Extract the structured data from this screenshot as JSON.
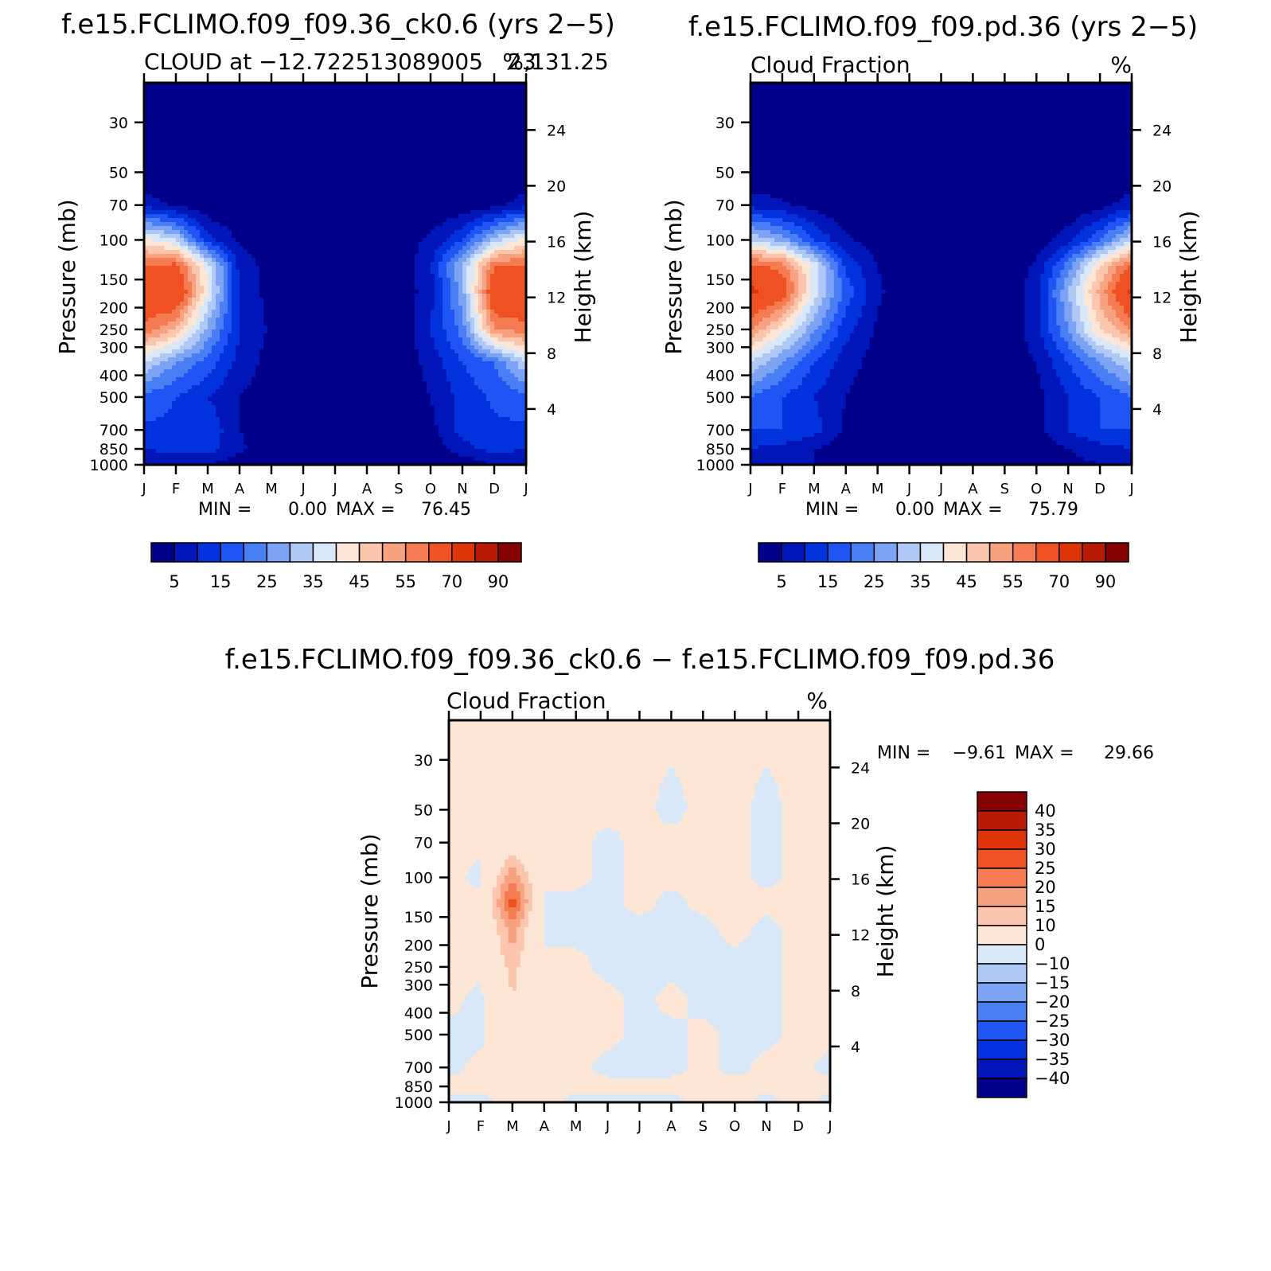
{
  "palettes": {
    "cloud": [
      "#00008b",
      "#0016b8",
      "#0033dd",
      "#1f55f5",
      "#4a7ef5",
      "#7ca3f4",
      "#afc8f6",
      "#d8e8f8",
      "#fde6d6",
      "#fcc5ad",
      "#f9a282",
      "#f47b52",
      "#f05123",
      "#de3508",
      "#b81a04",
      "#850000"
    ],
    "diff": [
      "#00008b",
      "#0016b8",
      "#0033dd",
      "#1f55f5",
      "#4a7ef5",
      "#7ca3f4",
      "#afc8f6",
      "#d8e8f8",
      "#fde6d6",
      "#fcc5ad",
      "#f9a282",
      "#f47b52",
      "#f05123",
      "#de3508",
      "#b81a04",
      "#850000"
    ]
  },
  "months": [
    "J",
    "F",
    "M",
    "A",
    "M",
    "J",
    "J",
    "A",
    "S",
    "O",
    "N",
    "D",
    "J"
  ],
  "pressure_ticks": [
    "30",
    "50",
    "70",
    "100",
    "150",
    "200",
    "250",
    "300",
    "400",
    "500",
    "700",
    "850",
    "1000"
  ],
  "height_ticks": [
    "24",
    "20",
    "16",
    "12",
    "8",
    "4"
  ],
  "panels": {
    "top_left": {
      "title": "f.e15.FCLIMO.f09_f09.36_ck0.6 (yrs 2−5)",
      "subtitle_left": "CLOUD at −12.722513089005",
      "subtitle_overlap": "23",
      "subtitle_rest": ",131.25",
      "units": "%",
      "ylabel": "Pressure (mb)",
      "ylabel_right": "Height (km)",
      "min_label": "MIN =",
      "min_value": "0.00",
      "max_label": "MAX =",
      "max_value": "76.45",
      "colorbar_labels": [
        "5",
        "15",
        "25",
        "35",
        "45",
        "55",
        "70",
        "90"
      ]
    },
    "top_right": {
      "title": "f.e15.FCLIMO.f09_f09.pd.36 (yrs 2−5)",
      "subtitle_left": "Cloud Fraction",
      "units": "%",
      "ylabel": "Pressure (mb)",
      "ylabel_right": "Height (km)",
      "min_label": "MIN =",
      "min_value": "0.00",
      "max_label": "MAX =",
      "max_value": "75.79",
      "colorbar_labels": [
        "5",
        "15",
        "25",
        "35",
        "45",
        "55",
        "70",
        "90"
      ]
    },
    "bottom": {
      "title": "f.e15.FCLIMO.f09_f09.36_ck0.6 − f.e15.FCLIMO.f09_f09.pd.36",
      "subtitle_left": "Cloud Fraction",
      "units": "%",
      "ylabel": "Pressure (mb)",
      "ylabel_right": "Height (km)",
      "min_label": "MIN =",
      "min_value": "−9.61",
      "max_label": "MAX =",
      "max_value": "29.66",
      "colorbar_labels": [
        "40",
        "35",
        "30",
        "25",
        "20",
        "15",
        "10",
        "0",
        "−10",
        "−15",
        "−20",
        "−25",
        "−30",
        "−35",
        "−40"
      ]
    }
  },
  "chart_data": [
    {
      "type": "heatmap",
      "title": "f.e15.FCLIMO.f09_f09.36_ck0.6 (yrs 2−5)",
      "subtitle": "CLOUD at −12.72251308900523,131.25",
      "units": "%",
      "xlabel": "",
      "ylabel": "Pressure (mb)",
      "ylabel_right": "Height (km)",
      "x": [
        "J",
        "F",
        "M",
        "A",
        "M",
        "J",
        "J",
        "A",
        "S",
        "O",
        "N",
        "D",
        "J"
      ],
      "y_pressure_ticks": [
        30,
        50,
        70,
        100,
        150,
        200,
        250,
        300,
        400,
        500,
        700,
        850,
        1000
      ],
      "y_height_ticks_km": [
        24,
        20,
        16,
        12,
        8,
        4
      ],
      "ylim": [
        1000,
        20
      ],
      "levels": [
        5,
        10,
        15,
        20,
        25,
        30,
        35,
        40,
        45,
        50,
        55,
        60,
        70,
        80,
        90
      ],
      "min": 0.0,
      "max": 76.45,
      "y_levels": [
        20,
        50,
        70,
        100,
        130,
        170,
        250,
        350,
        500,
        700,
        850,
        1000
      ],
      "values": [
        [
          0,
          0,
          0,
          0,
          0,
          0,
          0,
          0,
          0,
          0,
          0,
          0,
          0
        ],
        [
          0,
          0,
          0,
          0,
          0,
          0,
          0,
          0,
          0,
          0,
          0,
          0,
          0
        ],
        [
          8,
          4,
          1,
          0,
          0,
          0,
          0,
          0,
          0,
          0,
          1,
          3,
          8
        ],
        [
          42,
          35,
          12,
          4,
          1,
          0,
          0,
          0,
          2,
          6,
          15,
          32,
          42
        ],
        [
          60,
          62,
          38,
          8,
          3,
          0,
          0,
          4,
          1,
          9,
          30,
          60,
          60
        ],
        [
          68,
          70,
          40,
          9,
          3,
          0,
          0,
          0,
          1,
          8,
          28,
          68,
          68
        ],
        [
          58,
          50,
          28,
          10,
          4,
          0,
          0,
          0,
          1,
          10,
          22,
          55,
          58
        ],
        [
          35,
          25,
          18,
          8,
          3,
          0,
          0,
          0,
          1,
          7,
          15,
          20,
          35
        ],
        [
          18,
          15,
          10,
          5,
          2,
          0,
          0,
          0,
          1,
          5,
          12,
          16,
          18
        ],
        [
          14,
          14,
          14,
          5,
          1,
          0,
          0,
          0,
          0,
          3,
          12,
          14,
          14
        ],
        [
          10,
          12,
          12,
          6,
          2,
          0,
          1,
          1,
          0,
          2,
          8,
          12,
          10
        ],
        [
          5,
          5,
          5,
          2,
          1,
          1,
          0,
          0,
          0,
          1,
          1,
          5,
          5
        ]
      ]
    },
    {
      "type": "heatmap",
      "title": "f.e15.FCLIMO.f09_f09.pd.36 (yrs 2−5)",
      "subtitle": "Cloud Fraction",
      "units": "%",
      "xlabel": "",
      "ylabel": "Pressure (mb)",
      "ylabel_right": "Height (km)",
      "x": [
        "J",
        "F",
        "M",
        "A",
        "M",
        "J",
        "J",
        "A",
        "S",
        "O",
        "N",
        "D",
        "J"
      ],
      "y_pressure_ticks": [
        30,
        50,
        70,
        100,
        150,
        200,
        250,
        300,
        400,
        500,
        700,
        850,
        1000
      ],
      "y_height_ticks_km": [
        24,
        20,
        16,
        12,
        8,
        4
      ],
      "ylim": [
        1000,
        20
      ],
      "levels": [
        5,
        10,
        15,
        20,
        25,
        30,
        35,
        40,
        45,
        50,
        55,
        60,
        70,
        80,
        90
      ],
      "min": 0.0,
      "max": 75.79,
      "y_levels": [
        20,
        50,
        70,
        100,
        130,
        170,
        250,
        350,
        500,
        700,
        850,
        1000
      ],
      "values": [
        [
          0,
          0,
          0,
          0,
          0,
          0,
          0,
          0,
          0,
          0,
          0,
          0,
          0
        ],
        [
          0,
          0,
          0,
          0,
          0,
          0,
          0,
          0,
          0,
          0,
          0,
          0,
          0
        ],
        [
          8,
          6,
          3,
          1,
          0,
          0,
          0,
          0,
          0,
          0,
          0,
          3,
          8
        ],
        [
          35,
          28,
          15,
          6,
          2,
          0,
          0,
          0,
          0,
          2,
          8,
          20,
          35
        ],
        [
          62,
          58,
          38,
          14,
          5,
          0,
          0,
          0,
          1,
          6,
          22,
          45,
          62
        ],
        [
          72,
          65,
          38,
          18,
          6,
          1,
          0,
          0,
          1,
          8,
          30,
          52,
          72
        ],
        [
          55,
          42,
          26,
          12,
          4,
          1,
          0,
          0,
          1,
          8,
          25,
          45,
          55
        ],
        [
          35,
          25,
          15,
          7,
          3,
          1,
          0,
          0,
          1,
          5,
          15,
          25,
          35
        ],
        [
          20,
          15,
          10,
          5,
          2,
          1,
          0,
          0,
          0,
          3,
          10,
          15,
          20
        ],
        [
          15,
          15,
          12,
          4,
          1,
          0,
          0,
          0,
          0,
          3,
          10,
          15,
          15
        ],
        [
          10,
          8,
          5,
          2,
          1,
          0,
          0,
          0,
          0,
          2,
          5,
          8,
          10
        ],
        [
          5,
          5,
          5,
          1,
          1,
          0,
          0,
          0,
          0,
          1,
          3,
          5,
          5
        ]
      ]
    },
    {
      "type": "heatmap",
      "title": "f.e15.FCLIMO.f09_f09.36_ck0.6 − f.e15.FCLIMO.f09_f09.pd.36",
      "subtitle": "Cloud Fraction",
      "units": "%",
      "xlabel": "",
      "ylabel": "Pressure (mb)",
      "ylabel_right": "Height (km)",
      "x": [
        "J",
        "F",
        "M",
        "A",
        "M",
        "J",
        "J",
        "A",
        "S",
        "O",
        "N",
        "D",
        "J"
      ],
      "y_pressure_ticks": [
        30,
        50,
        70,
        100,
        150,
        200,
        250,
        300,
        400,
        500,
        700,
        850,
        1000
      ],
      "y_height_ticks_km": [
        24,
        20,
        16,
        12,
        8,
        4
      ],
      "ylim": [
        1000,
        20
      ],
      "levels": [
        -40,
        -35,
        -30,
        -25,
        -20,
        -15,
        -10,
        0,
        10,
        15,
        20,
        25,
        30,
        35,
        40
      ],
      "min": -9.61,
      "max": 29.66,
      "y_levels": [
        20,
        50,
        70,
        100,
        130,
        170,
        250,
        350,
        500,
        700,
        850,
        1000
      ],
      "values": [
        [
          1,
          1,
          1,
          1,
          1,
          1,
          1,
          1,
          1,
          1,
          1,
          1,
          1
        ],
        [
          1,
          1,
          1,
          1,
          1,
          1,
          1,
          -1,
          1,
          1,
          -1,
          1,
          1
        ],
        [
          1,
          1,
          4,
          1,
          1,
          -1,
          1,
          1,
          1,
          1,
          -1,
          1,
          1
        ],
        [
          1,
          -1,
          20,
          1,
          1,
          -1,
          1,
          1,
          1,
          1,
          -1,
          1,
          1
        ],
        [
          1,
          1,
          28,
          -1,
          -1,
          -1,
          1,
          -1,
          1,
          1,
          1,
          1,
          3
        ],
        [
          1,
          1,
          18,
          -1,
          -1,
          -1,
          -1,
          -1,
          -1,
          1,
          -1,
          1,
          9
        ],
        [
          1,
          1,
          12,
          1,
          1,
          -1,
          -1,
          -1,
          -1,
          -1,
          -1,
          1,
          1
        ],
        [
          1,
          -1,
          10,
          1,
          1,
          1,
          -1,
          1,
          -1,
          -1,
          -1,
          1,
          1
        ],
        [
          -1,
          -1,
          8,
          1,
          1,
          1,
          -1,
          -1,
          1,
          -1,
          -1,
          1,
          1
        ],
        [
          -1,
          1,
          1,
          1,
          1,
          -1,
          -1,
          -1,
          1,
          -1,
          1,
          1,
          -1
        ],
        [
          1,
          1,
          1,
          1,
          1,
          1,
          1,
          1,
          1,
          1,
          1,
          1,
          1
        ],
        [
          -1,
          -1,
          1,
          1,
          -1,
          -1,
          -1,
          -1,
          1,
          1,
          -1,
          1,
          -1
        ]
      ]
    }
  ]
}
